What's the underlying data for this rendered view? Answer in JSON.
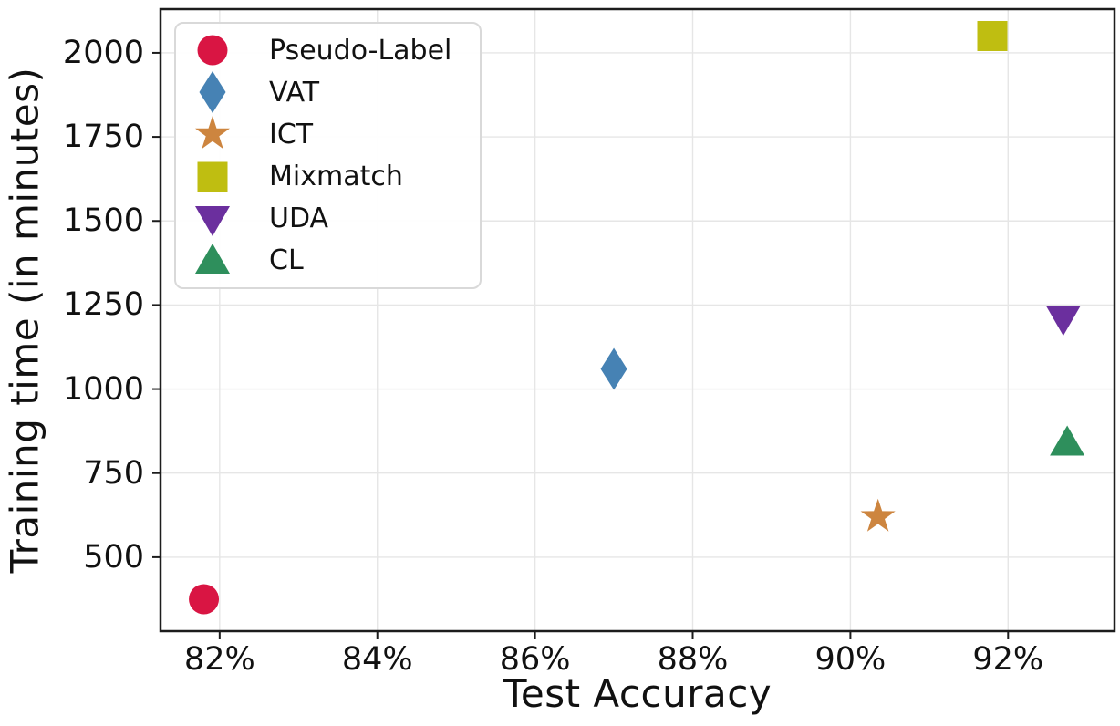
{
  "figure": {
    "background": "#ffffff",
    "frame_color": "#1c1c1c",
    "grid_color": "#e6e6e6",
    "tick_color": "#1c1c1c",
    "text_color": "#111111",
    "legend_border_color": "#d9d9d9"
  },
  "chart_data": {
    "type": "scatter",
    "title": "",
    "xlabel": "Test Accuracy",
    "ylabel": "Training time (in minutes)",
    "xlim": [
      81.25,
      93.35
    ],
    "ylim": [
      280,
      2130
    ],
    "grid": true,
    "legend_position": "upper-left",
    "x_ticks": [
      {
        "value": 82,
        "label": "82%"
      },
      {
        "value": 84,
        "label": "84%"
      },
      {
        "value": 86,
        "label": "86%"
      },
      {
        "value": 88,
        "label": "88%"
      },
      {
        "value": 90,
        "label": "90%"
      },
      {
        "value": 92,
        "label": "92%"
      }
    ],
    "y_ticks": [
      {
        "value": 500,
        "label": "500"
      },
      {
        "value": 750,
        "label": "750"
      },
      {
        "value": 1000,
        "label": "1000"
      },
      {
        "value": 1250,
        "label": "1250"
      },
      {
        "value": 1500,
        "label": "1500"
      },
      {
        "value": 1750,
        "label": "1750"
      },
      {
        "value": 2000,
        "label": "2000"
      }
    ],
    "series": [
      {
        "name": "Pseudo-Label",
        "marker": "circle",
        "color": "#d91543",
        "points": [
          {
            "x": 81.8,
            "y": 375
          }
        ]
      },
      {
        "name": "VAT",
        "marker": "diamond",
        "color": "#4682b4",
        "points": [
          {
            "x": 87.0,
            "y": 1060
          }
        ]
      },
      {
        "name": "ICT",
        "marker": "star",
        "color": "#cd853f",
        "points": [
          {
            "x": 90.35,
            "y": 620
          }
        ]
      },
      {
        "name": "Mixmatch",
        "marker": "square",
        "color": "#bfbe11",
        "points": [
          {
            "x": 91.8,
            "y": 2050
          }
        ]
      },
      {
        "name": "UDA",
        "marker": "triangle-down",
        "color": "#6b2f9e",
        "points": [
          {
            "x": 92.7,
            "y": 1210
          }
        ]
      },
      {
        "name": "CL",
        "marker": "triangle-up",
        "color": "#2e8f5c",
        "points": [
          {
            "x": 92.75,
            "y": 840
          }
        ]
      }
    ]
  }
}
